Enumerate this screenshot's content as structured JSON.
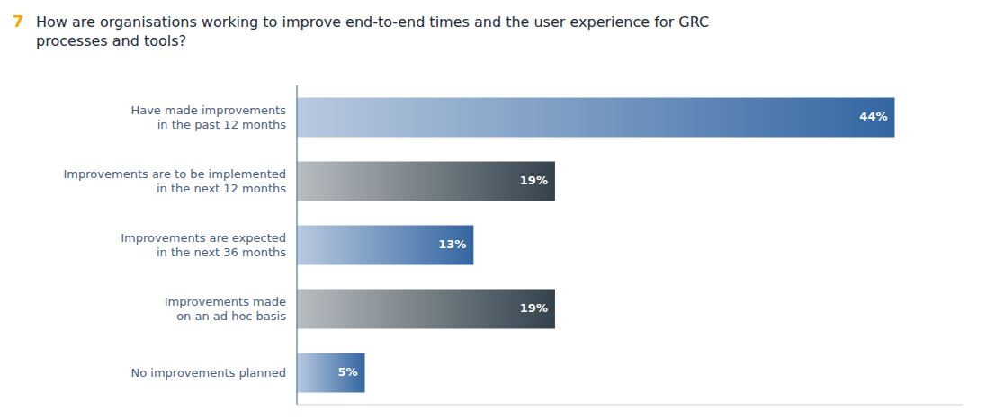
{
  "chart_data": {
    "type": "bar",
    "orientation": "horizontal",
    "title": "How are organisations working to improve end-to-end times and the user experience for GRC\nprocesses and tools?",
    "annotations": [
      {
        "text": "7",
        "color": "#f5a800"
      }
    ],
    "categories": [
      "Have made improvements\nin the past 12 months",
      "Improvements are to be implemented\nin the next 12 months",
      "Improvements are expected\nin the next 36 months",
      "Improvements made\non an ad hoc basis",
      "No improvements planned"
    ],
    "values": [
      44,
      19,
      13,
      19,
      5
    ],
    "value_labels": [
      "44%",
      "19%",
      "13%",
      "19%",
      "5%"
    ],
    "colors": [
      "#3466a2",
      "#34424c",
      "#3466a2",
      "#34424c",
      "#3466a2"
    ],
    "xlim": [
      0,
      49
    ],
    "data_labels": true,
    "tick_labels": "y",
    "grid": false
  }
}
